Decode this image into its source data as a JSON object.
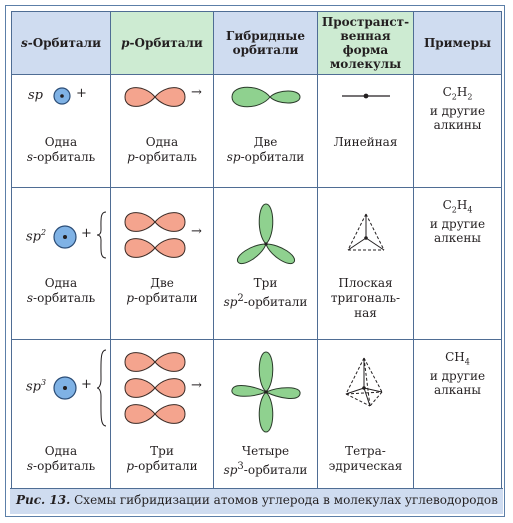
{
  "headers": {
    "s_orbitals_prefix": "s",
    "s_orbitals_suffix": "-Орбитали",
    "p_orbitals_prefix": "p",
    "p_orbitals_suffix": "-Орбитали",
    "hybrid_line1": "Гибридные",
    "hybrid_line2": "орбитали",
    "shape_line1": "Пространст-",
    "shape_line2": "венная форма",
    "shape_line3": "молекулы",
    "examples": "Примеры"
  },
  "rows": [
    {
      "symbol_base": "sp",
      "symbol_sup": "",
      "s_label_1": "Одна",
      "s_label_2_prefix": "s",
      "s_label_2_suffix": "-орбиталь",
      "p_label_1": "Одна",
      "p_label_2_prefix": "p",
      "p_label_2_suffix": "-орбиталь",
      "h_label_1": "Две",
      "h_label_2_prefix": "sp",
      "h_label_2_sup": "",
      "h_label_2_suffix": "-орбитали",
      "shape_lines": [
        "Линейная"
      ],
      "example_formula_c": "C",
      "example_formula_c_sub": "2",
      "example_formula_h": "H",
      "example_formula_h_sub": "2",
      "example_line2": "и другие",
      "example_line3": "алкины"
    },
    {
      "symbol_base": "sp",
      "symbol_sup": "2",
      "s_label_1": "Одна",
      "s_label_2_prefix": "s",
      "s_label_2_suffix": "-орбиталь",
      "p_label_1": "Две",
      "p_label_2_prefix": "p",
      "p_label_2_suffix": "-орбитали",
      "h_label_1": "Три",
      "h_label_2_prefix": "sp",
      "h_label_2_sup": "2",
      "h_label_2_suffix": "-орбитали",
      "shape_lines": [
        "Плоская",
        "тригональ-",
        "ная"
      ],
      "example_formula_c": "C",
      "example_formula_c_sub": "2",
      "example_formula_h": "H",
      "example_formula_h_sub": "4",
      "example_line2": "и другие",
      "example_line3": "алкены"
    },
    {
      "symbol_base": "sp",
      "symbol_sup": "3",
      "s_label_1": "Одна",
      "s_label_2_prefix": "s",
      "s_label_2_suffix": "-орбиталь",
      "p_label_1": "Три",
      "p_label_2_prefix": "p",
      "p_label_2_suffix": "-орбитали",
      "h_label_1": "Четыре",
      "h_label_2_prefix": "sp",
      "h_label_2_sup": "3",
      "h_label_2_suffix": "-орбитали",
      "shape_lines": [
        "Тетра-",
        "эдрическая"
      ],
      "example_formula_c": "CH",
      "example_formula_c_sub": "4",
      "example_formula_h": "",
      "example_formula_h_sub": "",
      "example_line2": "и другие",
      "example_line3": "алканы"
    }
  ],
  "plus_sign": "+",
  "arrow_sign": "→",
  "caption": {
    "label": "Рис. 13.",
    "text": "Схемы гибридизации атомов углерода в молекулах углеводородов"
  },
  "colors": {
    "header_blue": "#cfdcf0",
    "header_green": "#cdebd2",
    "p_orbital_fill": "#f4a48e",
    "hybrid_fill": "#8fd18f",
    "s_orbital_fill": "#7fb2e5"
  }
}
